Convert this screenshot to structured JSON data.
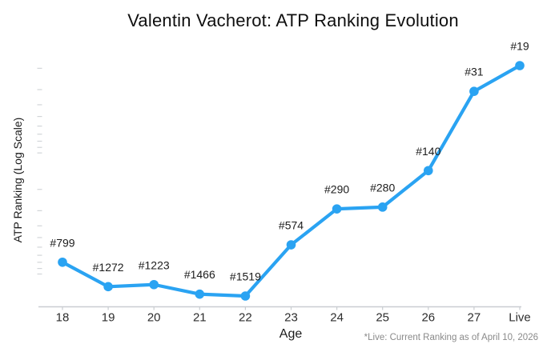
{
  "chart_data": {
    "type": "line",
    "title": "Valentin Vacherot: ATP Ranking Evolution",
    "xlabel": "Age",
    "ylabel": "ATP Ranking (Log Scale)",
    "footnote": "*Live: Current Ranking as of April 10, 2026",
    "categories": [
      "18",
      "19",
      "20",
      "21",
      "22",
      "23",
      "24",
      "25",
      "26",
      "27",
      "Live"
    ],
    "series": [
      {
        "name": "ATP Ranking",
        "values": [
          799,
          1272,
          1223,
          1466,
          1519,
          574,
          290,
          280,
          140,
          31,
          19
        ],
        "point_labels": [
          "#799",
          "#1272",
          "#1223",
          "#1466",
          "#1519",
          "#574",
          "#290",
          "#280",
          "#140",
          "#31",
          "#19"
        ]
      }
    ],
    "y_scale": "log",
    "y_inverted_note": "better (lower) ranking number plotted higher",
    "ylim": [
      14,
      2000
    ],
    "y_minor_ticks": [
      20,
      30,
      40,
      50,
      60,
      70,
      80,
      90,
      100,
      200,
      300,
      400,
      500,
      600,
      700,
      800,
      900,
      1000
    ],
    "grid": false,
    "legend": false,
    "colors": {
      "line": "#2AA3F2",
      "marker": "#2AA3F2",
      "point_label": "#1c1c1c",
      "axis": "#c9cdd1",
      "minor_tick": "#d2d5d8",
      "tick_label": "#2d2d2d",
      "title": "#0f0f0f",
      "footnote": "#8a8a8a"
    }
  }
}
